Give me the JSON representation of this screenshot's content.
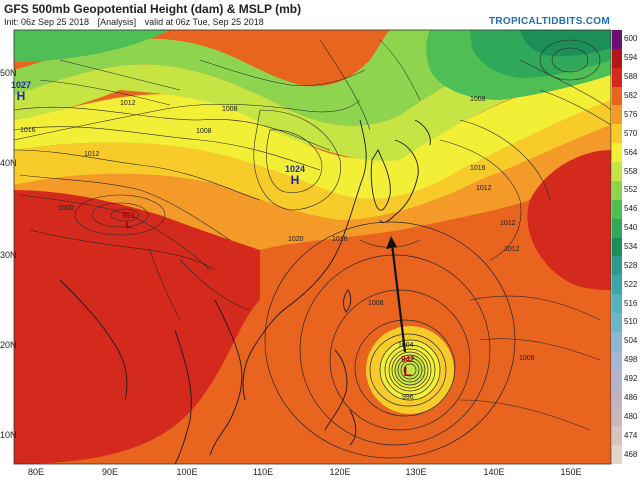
{
  "header": {
    "title": "GFS 500mb Geopotential Height (dam) & MSLP (mb)",
    "init": "Init: 06z Sep 25 2018",
    "analysis": "[Analysis]",
    "valid": "valid at 06z Tue, Sep 25 2018",
    "brand": "TROPICALTIDBITS.COM"
  },
  "colorbar": {
    "labels": [
      "600",
      "594",
      "588",
      "582",
      "576",
      "570",
      "564",
      "558",
      "552",
      "546",
      "540",
      "534",
      "528",
      "522",
      "516",
      "510",
      "504",
      "498",
      "492",
      "486",
      "480",
      "474",
      "468"
    ],
    "colors": [
      "#6b0f75",
      "#b21616",
      "#d42a1e",
      "#e8641f",
      "#f39a28",
      "#f7cc2a",
      "#f2ef36",
      "#c6e443",
      "#8ed44e",
      "#4fbf55",
      "#2fa85a",
      "#1c8f59",
      "#2b9b8b",
      "#3aa7a7",
      "#52b0bf",
      "#6ab7cc",
      "#8ab8d6",
      "#a5b7d8",
      "#b6b3cf",
      "#bfb2c4",
      "#c8b7bd",
      "#d4c3bf",
      "#e1d4cf"
    ]
  },
  "axes": {
    "lat": [
      "50N",
      "40N",
      "30N",
      "20N",
      "10N"
    ],
    "lon": [
      "80E",
      "90E",
      "100E",
      "110E",
      "120E",
      "130E",
      "140E",
      "150E"
    ]
  },
  "pressure_centers": [
    {
      "type": "H",
      "value": "1027"
    },
    {
      "type": "H",
      "value": "1024"
    },
    {
      "type": "L",
      "value": "951"
    },
    {
      "type": "L",
      "value": "942"
    }
  ],
  "isobar_labels": [
    "1016",
    "1008",
    "1012",
    "1020",
    "1016",
    "1012",
    "1008",
    "1000",
    "1012",
    "1008",
    "1008",
    "996",
    "1008",
    "1004",
    "1016",
    "1012",
    "1012"
  ],
  "colors": {
    "land_outline": "#1a1a1a",
    "isobar": "#2a2a2a",
    "high_label": "#1b2aa8",
    "low_label": "#b00000",
    "arrow": "#111111"
  }
}
